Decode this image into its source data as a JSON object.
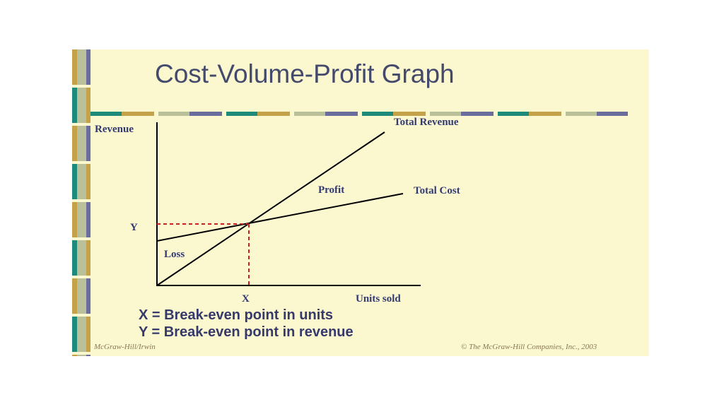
{
  "slide": {
    "title": "Cost-Volume-Profit Graph",
    "colors": {
      "background": "#fbf7cf",
      "teal": "#1e8a7a",
      "gold": "#c4a24a",
      "sage": "#b9c09a",
      "slate": "#6b6e9c",
      "text": "#323a72",
      "breakeven": "#cc1f1f"
    }
  },
  "chart": {
    "y_axis_label": "Revenue",
    "x_axis_label": "Units sold",
    "total_revenue_label": "Total Revenue",
    "total_cost_label": "Total Cost",
    "profit_label": "Profit",
    "loss_label": "Loss",
    "x_marker": "X",
    "y_marker": "Y"
  },
  "legend": {
    "x_definition": "X = Break-even point in units",
    "y_definition": "Y = Break-even point in revenue"
  },
  "footer": {
    "publisher": "McGraw-Hill/Irwin",
    "copyright": "© The McGraw-Hill Companies, Inc., 2003"
  }
}
